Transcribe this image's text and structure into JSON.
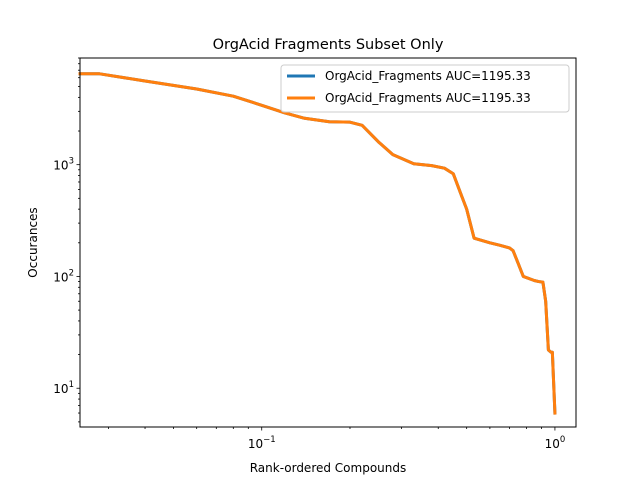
{
  "chart_data": {
    "type": "line",
    "title": "OrgAcid Fragments Subset Only",
    "xlabel": "Rank-ordered Compounds",
    "ylabel": "Occurances",
    "x_scale": "log",
    "y_scale": "log",
    "xlim": [
      0.024,
      1.18
    ],
    "ylim": [
      4.5,
      9000
    ],
    "x_ticks": [
      {
        "value": 0.1,
        "base": "10",
        "exp": "−1"
      },
      {
        "value": 1,
        "base": "10",
        "exp": "0"
      }
    ],
    "y_ticks": [
      {
        "value": 10,
        "base": "10",
        "exp": "1"
      },
      {
        "value": 100,
        "base": "10",
        "exp": "2"
      },
      {
        "value": 1000,
        "base": "10",
        "exp": "3"
      }
    ],
    "grid": false,
    "legend_position": "upper right",
    "colors": {
      "series1": "#1f77b4",
      "series2": "#ff7f0e"
    },
    "x": [
      0.024,
      0.028,
      0.04,
      0.06,
      0.08,
      0.1,
      0.12,
      0.14,
      0.17,
      0.2,
      0.22,
      0.25,
      0.28,
      0.33,
      0.38,
      0.42,
      0.45,
      0.48,
      0.5,
      0.53,
      0.6,
      0.65,
      0.7,
      0.72,
      0.75,
      0.78,
      0.85,
      0.88,
      0.91,
      0.93,
      0.95,
      0.97,
      0.98,
      1.0
    ],
    "series": [
      {
        "name": "OrgAcid_Fragments AUC=1195.33",
        "values": [
          6500,
          6500,
          5600,
          4750,
          4100,
          3400,
          2900,
          2600,
          2420,
          2400,
          2250,
          1600,
          1230,
          1020,
          980,
          930,
          830,
          530,
          400,
          220,
          200,
          190,
          180,
          170,
          130,
          100,
          92,
          90,
          89,
          60,
          22,
          21,
          21,
          6
        ]
      },
      {
        "name": "OrgAcid_Fragments AUC=1195.33",
        "values": [
          6500,
          6500,
          5600,
          4750,
          4100,
          3400,
          2900,
          2600,
          2420,
          2400,
          2250,
          1600,
          1230,
          1020,
          980,
          930,
          830,
          530,
          400,
          220,
          200,
          190,
          180,
          170,
          130,
          100,
          92,
          90,
          89,
          60,
          22,
          21,
          21,
          6
        ]
      }
    ]
  }
}
